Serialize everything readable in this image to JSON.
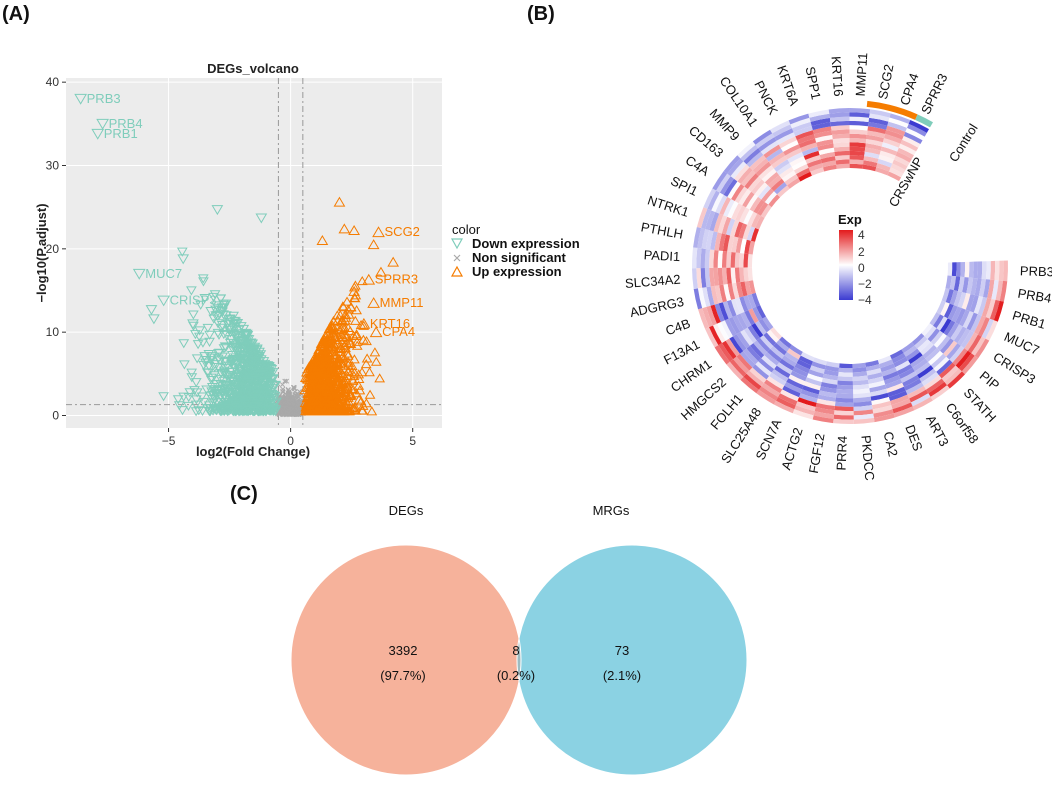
{
  "colors": {
    "down": "#7fcdbb",
    "up": "#f57c00",
    "nonsig": "#a9a9a9",
    "venn_left": "#f4a58a",
    "venn_right": "#7ecde0",
    "venn_left_label": "#f48c7a",
    "venn_right_label": "#3ab7d6",
    "heat_low": "#3b3bd1",
    "heat_mid": "#ffffff",
    "heat_high": "#e31a1c",
    "group_control": "#7fcdbb",
    "group_crswnp": "#f57c00"
  },
  "panels": {
    "a": "(A)",
    "b": "(B)",
    "c": "(C)"
  },
  "chart_data": [
    {
      "type": "scatter",
      "title": "DEGs_volcano",
      "xlabel": "log2(Fold Change)",
      "ylabel": "−log10(P.adjust)",
      "xlim": [
        -9.2,
        6.2
      ],
      "ylim": [
        -1.5,
        40.5
      ],
      "xticks": [
        -5,
        0,
        5
      ],
      "xtick_labels": [
        "−5",
        "0",
        "5"
      ],
      "yticks": [
        0,
        10,
        20,
        30,
        40
      ],
      "ytick_labels": [
        "0",
        "10",
        "20",
        "30",
        "40"
      ],
      "fc_cutoff": [
        -0.5,
        0.5
      ],
      "p_cutoff_line": 1.3,
      "grid": true,
      "legend": {
        "title": "color",
        "position": "right",
        "entries": [
          {
            "label": "Down expression",
            "marker": "triangle-down",
            "key": "down"
          },
          {
            "label": "Non significant",
            "marker": "x",
            "key": "nonsig"
          },
          {
            "label": "Up expression",
            "marker": "triangle-up",
            "key": "up"
          }
        ]
      },
      "labeled_points": [
        {
          "gene": "PRB3",
          "x": -8.6,
          "y": 38.0,
          "group": "down"
        },
        {
          "gene": "PRB4",
          "x": -7.7,
          "y": 35.0,
          "group": "down"
        },
        {
          "gene": "PRB1",
          "x": -7.9,
          "y": 33.8,
          "group": "down"
        },
        {
          "gene": "MUC7",
          "x": -6.2,
          "y": 17.0,
          "group": "down"
        },
        {
          "gene": "CRISP3",
          "x": -5.2,
          "y": 13.8,
          "group": "down"
        },
        {
          "gene": "SCG2",
          "x": 3.6,
          "y": 22.0,
          "group": "up"
        },
        {
          "gene": "SPRR3",
          "x": 3.2,
          "y": 16.3,
          "group": "up"
        },
        {
          "gene": "MMP11",
          "x": 3.4,
          "y": 13.5,
          "group": "up"
        },
        {
          "gene": "KRT16",
          "x": 3.0,
          "y": 11.0,
          "group": "up"
        },
        {
          "gene": "CPA4",
          "x": 3.5,
          "y": 10.0,
          "group": "up"
        }
      ],
      "extra_points": [
        {
          "x": -3.0,
          "y": 24.7,
          "group": "down"
        },
        {
          "x": -1.2,
          "y": 23.7,
          "group": "down"
        },
        {
          "x": -4.4,
          "y": 18.8,
          "group": "down"
        },
        {
          "x": -5.6,
          "y": 11.6,
          "group": "down"
        },
        {
          "x": -4.0,
          "y": 11.0,
          "group": "down"
        },
        {
          "x": -5.7,
          "y": 12.7,
          "group": "down"
        },
        {
          "x": 2.0,
          "y": 25.6,
          "group": "up"
        },
        {
          "x": 2.2,
          "y": 22.4,
          "group": "up"
        },
        {
          "x": 2.6,
          "y": 22.2,
          "group": "up"
        },
        {
          "x": 3.4,
          "y": 20.5,
          "group": "up"
        },
        {
          "x": 1.3,
          "y": 21.0,
          "group": "up"
        },
        {
          "x": 4.2,
          "y": 18.4,
          "group": "up"
        },
        {
          "x": 3.7,
          "y": 17.2,
          "group": "up"
        },
        {
          "x": 2.6,
          "y": 14.9,
          "group": "up"
        }
      ]
    },
    {
      "type": "heatmap",
      "layout": "circular",
      "legend_title": "Exp",
      "legend_ticks": [
        "4",
        "2",
        "0",
        "−2",
        "−4"
      ],
      "groups": [
        "Control",
        "CRSwNP"
      ],
      "genes": [
        "PRB3",
        "PRB4",
        "PRB1",
        "MUC7",
        "CRISP3",
        "PIP",
        "STATH",
        "C6orf58",
        "ART3",
        "DES",
        "CA2",
        "PKDCC",
        "PRR4",
        "FGF12",
        "ACTG2",
        "SCN7A",
        "SLC25A48",
        "FOLH1",
        "HMGCS2",
        "CHRM1",
        "F13A1",
        "C4B",
        "ADGRG3",
        "SLC34A2",
        "PADI1",
        "PTHLH",
        "NTRK1",
        "SPI1",
        "C4A",
        "CD163",
        "MMP9",
        "COL10A1",
        "PNCK",
        "KRT6A",
        "SPP1",
        "KRT16",
        "MMP11",
        "SCG2",
        "CPA4",
        "SPRR3"
      ]
    },
    {
      "type": "venn",
      "sets": [
        {
          "name": "DEGs",
          "only": "3392",
          "only_pct": "(97.7%)"
        },
        {
          "name": "MRGs",
          "only": "73",
          "only_pct": "(2.1%)"
        }
      ],
      "intersection": "8",
      "intersection_pct": "(0.2%)"
    }
  ]
}
